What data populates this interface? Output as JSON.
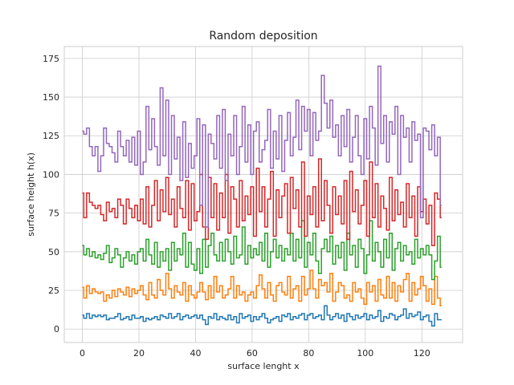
{
  "chart_data": {
    "type": "line",
    "drawstyle": "steps",
    "title": "Random deposition",
    "xlabel": "surface lenght x",
    "ylabel": "surface height h(x)",
    "xlim": [
      -6.4,
      134.4
    ],
    "ylim": [
      -8.7,
      182.7
    ],
    "xticks": [
      0,
      20,
      40,
      60,
      80,
      100,
      120
    ],
    "yticks": [
      0,
      25,
      50,
      75,
      100,
      125,
      150,
      175
    ],
    "grid": true,
    "series": [
      {
        "color": "#1f77b4",
        "values": [
          9,
          7,
          10,
          7,
          9,
          8,
          9,
          8,
          9,
          6,
          7,
          7,
          8,
          10,
          6,
          7,
          8,
          6,
          9,
          7,
          7,
          8,
          5,
          7,
          6,
          7,
          8,
          6,
          9,
          8,
          7,
          10,
          7,
          8,
          10,
          6,
          8,
          9,
          7,
          8,
          9,
          7,
          9,
          6,
          3,
          8,
          7,
          10,
          6,
          8,
          7,
          6,
          9,
          6,
          8,
          4,
          10,
          7,
          8,
          9,
          5,
          8,
          6,
          8,
          10,
          7,
          4,
          6,
          7,
          8,
          5,
          9,
          8,
          10,
          6,
          8,
          7,
          9,
          10,
          6,
          9,
          10,
          7,
          8,
          9,
          6,
          15,
          9,
          6,
          8,
          10,
          7,
          9,
          5,
          10,
          8,
          6,
          9,
          7,
          8,
          10,
          6,
          9,
          7,
          8,
          12,
          5,
          8,
          7,
          10,
          9,
          6,
          8,
          9,
          13,
          7,
          10,
          8,
          9,
          11,
          6,
          8,
          9,
          5,
          2,
          10,
          6,
          6
        ]
      },
      {
        "color": "#ff7f0e",
        "values": [
          27,
          20,
          28,
          23,
          26,
          24,
          23,
          24,
          18,
          22,
          20,
          25,
          21,
          26,
          24,
          22,
          27,
          21,
          26,
          23,
          25,
          28,
          22,
          19,
          30,
          22,
          20,
          32,
          25,
          22,
          36,
          26,
          20,
          28,
          24,
          22,
          30,
          18,
          28,
          22,
          20,
          24,
          30,
          24,
          19,
          28,
          20,
          34,
          24,
          28,
          20,
          22,
          26,
          34,
          20,
          28,
          22,
          24,
          18,
          22,
          24,
          20,
          28,
          35,
          26,
          20,
          30,
          22,
          18,
          28,
          30,
          24,
          22,
          34,
          20,
          26,
          28,
          18,
          34,
          22,
          26,
          38,
          26,
          20,
          32,
          28,
          30,
          24,
          36,
          18,
          24,
          30,
          28,
          20,
          22,
          18,
          30,
          24,
          26,
          20,
          16,
          30,
          24,
          28,
          18,
          32,
          22,
          20,
          34,
          20,
          30,
          18,
          28,
          24,
          32,
          36,
          18,
          30,
          22,
          26,
          34,
          28,
          18,
          26,
          16,
          34,
          20,
          15
        ]
      },
      {
        "color": "#2ba02b",
        "values": [
          54,
          48,
          52,
          47,
          50,
          46,
          48,
          45,
          49,
          54,
          43,
          46,
          52,
          48,
          40,
          46,
          50,
          44,
          48,
          42,
          50,
          52,
          44,
          58,
          48,
          42,
          56,
          40,
          50,
          44,
          52,
          38,
          56,
          44,
          52,
          48,
          62,
          40,
          56,
          42,
          38,
          52,
          36,
          58,
          40,
          54,
          62,
          48,
          44,
          56,
          44,
          58,
          50,
          42,
          60,
          46,
          48,
          66,
          42,
          54,
          46,
          52,
          48,
          56,
          44,
          62,
          40,
          50,
          58,
          46,
          54,
          44,
          52,
          48,
          62,
          44,
          58,
          46,
          70,
          40,
          56,
          48,
          62,
          44,
          36,
          52,
          58,
          50,
          60,
          42,
          54,
          46,
          56,
          38,
          62,
          48,
          54,
          40,
          58,
          52,
          36,
          48,
          70,
          44,
          56,
          50,
          40,
          58,
          46,
          62,
          38,
          52,
          56,
          44,
          54,
          48,
          50,
          42,
          58,
          46,
          52,
          48,
          54,
          48,
          32,
          44,
          60,
          40
        ]
      },
      {
        "color": "#d62728",
        "values": [
          88,
          72,
          88,
          82,
          80,
          78,
          80,
          74,
          70,
          82,
          76,
          78,
          72,
          84,
          80,
          68,
          84,
          78,
          72,
          80,
          70,
          84,
          68,
          92,
          66,
          80,
          96,
          70,
          90,
          76,
          98,
          74,
          84,
          66,
          92,
          78,
          72,
          96,
          64,
          94,
          70,
          76,
          100,
          66,
          58,
          98,
          72,
          94,
          64,
          88,
          72,
          100,
          62,
          92,
          84,
          66,
          96,
          70,
          86,
          74,
          92,
          60,
          104,
          76,
          92,
          66,
          84,
          102,
          60,
          90,
          72,
          86,
          94,
          62,
          98,
          78,
          90,
          66,
          108,
          60,
          86,
          74,
          92,
          66,
          110,
          70,
          96,
          80,
          62,
          92,
          74,
          86,
          68,
          96,
          58,
          102,
          76,
          90,
          68,
          80,
          96,
          60,
          108,
          72,
          94,
          66,
          86,
          78,
          64,
          98,
          70,
          90,
          74,
          82,
          66,
          94,
          72,
          86,
          60,
          92,
          76,
          84,
          68,
          80,
          54,
          88,
          84,
          72
        ]
      },
      {
        "color": "#9467bd",
        "values": [
          128,
          126,
          130,
          118,
          112,
          118,
          102,
          112,
          130,
          120,
          118,
          114,
          108,
          128,
          118,
          112,
          122,
          108,
          124,
          106,
          128,
          100,
          108,
          144,
          116,
          136,
          118,
          106,
          156,
          112,
          148,
          100,
          138,
          110,
          124,
          96,
          134,
          98,
          120,
          104,
          112,
          136,
          80,
          132,
          66,
          126,
          120,
          110,
          138,
          104,
          142,
          96,
          126,
          112,
          138,
          100,
          118,
          144,
          108,
          132,
          100,
          128,
          134,
          108,
          116,
          122,
          142,
          104,
          128,
          110,
          138,
          102,
          122,
          140,
          112,
          124,
          148,
          116,
          144,
          128,
          142,
          112,
          140,
          122,
          128,
          164,
          146,
          130,
          148,
          124,
          132,
          112,
          138,
          118,
          142,
          108,
          124,
          138,
          112,
          100,
          136,
          110,
          144,
          130,
          106,
          170,
          120,
          138,
          108,
          134,
          126,
          144,
          100,
          138,
          124,
          130,
          108,
          134,
          122,
          126,
          72,
          130,
          128,
          116,
          132,
          112,
          124,
          80
        ]
      }
    ]
  }
}
